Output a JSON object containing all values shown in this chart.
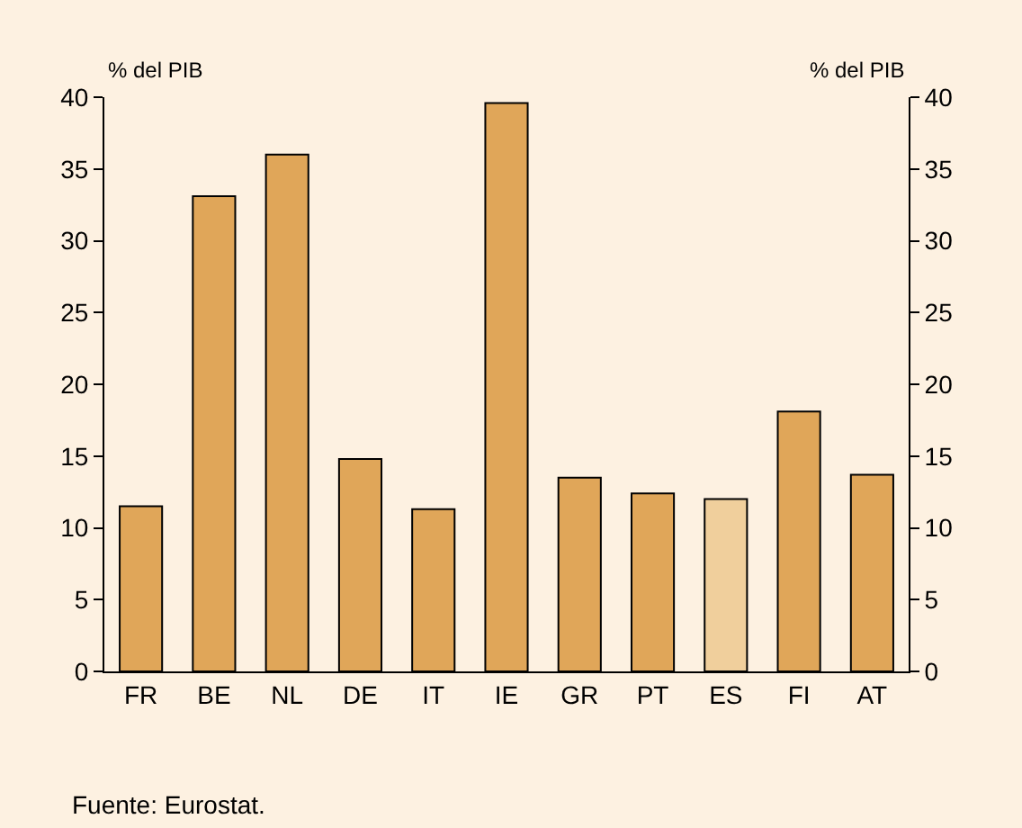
{
  "chart_data": {
    "type": "bar",
    "categories": [
      "FR",
      "BE",
      "NL",
      "DE",
      "IT",
      "IE",
      "GR",
      "PT",
      "ES",
      "FI",
      "AT"
    ],
    "values": [
      11.5,
      33.1,
      36,
      14.8,
      11.3,
      39.6,
      13.5,
      12.4,
      12,
      18.1,
      13.7
    ],
    "colors": [
      "#e0a659",
      "#e0a659",
      "#e0a659",
      "#e0a659",
      "#e0a659",
      "#e0a659",
      "#e0a659",
      "#e0a659",
      "#f0cf9c",
      "#e0a659",
      "#e0a659"
    ],
    "ylim": [
      0,
      40
    ],
    "yticks": [
      0,
      5,
      10,
      15,
      20,
      25,
      30,
      35,
      40
    ],
    "y2lim": [
      0,
      40
    ],
    "y2ticks": [
      0,
      5,
      10,
      15,
      20,
      25,
      30,
      35,
      40
    ],
    "ylabel": "% del PIB",
    "y2label": "% del PIB",
    "annotations": [
      "Fuente: Eurostat."
    ]
  }
}
